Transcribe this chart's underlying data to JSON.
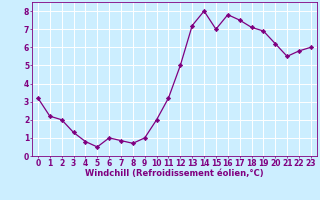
{
  "x": [
    0,
    1,
    2,
    3,
    4,
    5,
    6,
    7,
    8,
    9,
    10,
    11,
    12,
    13,
    14,
    15,
    16,
    17,
    18,
    19,
    20,
    21,
    22,
    23
  ],
  "y": [
    3.2,
    2.2,
    2.0,
    1.3,
    0.8,
    0.5,
    1.0,
    0.85,
    0.7,
    1.0,
    2.0,
    3.2,
    5.0,
    7.2,
    8.0,
    7.0,
    7.8,
    7.5,
    7.1,
    6.9,
    6.2,
    5.5,
    5.8,
    6.0
  ],
  "line_color": "#800080",
  "marker": "D",
  "marker_size": 2.2,
  "bg_color": "#cceeff",
  "grid_color": "#ffffff",
  "xlabel": "Windchill (Refroidissement éolien,°C)",
  "xlabel_color": "#800080",
  "xlabel_fontsize": 6,
  "tick_color": "#800080",
  "tick_fontsize": 5.5,
  "ylim": [
    0,
    8.5
  ],
  "xlim": [
    -0.5,
    23.5
  ],
  "yticks": [
    0,
    1,
    2,
    3,
    4,
    5,
    6,
    7,
    8
  ],
  "xticks": [
    0,
    1,
    2,
    3,
    4,
    5,
    6,
    7,
    8,
    9,
    10,
    11,
    12,
    13,
    14,
    15,
    16,
    17,
    18,
    19,
    20,
    21,
    22,
    23
  ]
}
